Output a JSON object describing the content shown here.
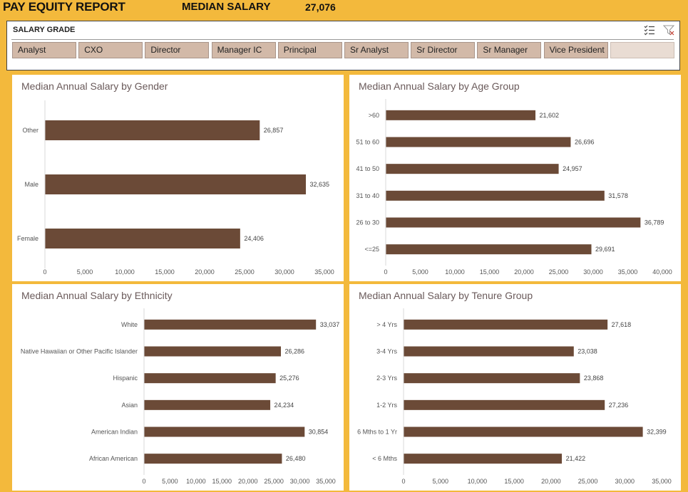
{
  "header": {
    "title": "PAY EQUITY REPORT",
    "metric_label": "MEDIAN SALARY",
    "metric_value": "27,076"
  },
  "slicer": {
    "title": "SALARY GRADE",
    "icons": [
      "multi-select-icon",
      "clear-filter-icon"
    ],
    "items": [
      "Analyst",
      "CXO",
      "Director",
      "Manager IC",
      "Principal",
      "Sr Analyst",
      "Sr Director",
      "Sr Manager",
      "Vice President",
      ""
    ]
  },
  "colors": {
    "bar": "#6b4a37",
    "header": "#f3b93c",
    "slicer_button": "#d2b9a8"
  },
  "chart_data": [
    {
      "type": "bar",
      "orientation": "horizontal",
      "title": "Median Annual Salary by Gender",
      "categories": [
        "Other",
        "Male",
        "Female"
      ],
      "values": [
        26857,
        32635,
        24406
      ],
      "labels": [
        "26,857",
        "32,635",
        "24,406"
      ],
      "xlim": [
        0,
        35000
      ],
      "ticks": [
        "0",
        "5,000",
        "10,000",
        "15,000",
        "20,000",
        "25,000",
        "30,000",
        "35,000"
      ]
    },
    {
      "type": "bar",
      "orientation": "horizontal",
      "title": "Median Annual Salary by Age Group",
      "categories": [
        ">60",
        "51 to 60",
        "41 to 50",
        "31 to 40",
        "26 to 30",
        "<=25"
      ],
      "values": [
        21602,
        26696,
        24957,
        31578,
        36789,
        29691
      ],
      "labels": [
        "21,602",
        "26,696",
        "24,957",
        "31,578",
        "36,789",
        "29,691"
      ],
      "xlim": [
        0,
        40000
      ],
      "ticks": [
        "0",
        "5,000",
        "10,000",
        "15,000",
        "20,000",
        "25,000",
        "30,000",
        "35,000",
        "40,000"
      ]
    },
    {
      "type": "bar",
      "orientation": "horizontal",
      "title": "Median Annual Salary by Ethnicity",
      "categories": [
        "White",
        "Native Hawaiian or Other Pacific Islander",
        "Hispanic",
        "Asian",
        "American Indian",
        "African American"
      ],
      "values": [
        33037,
        26286,
        25276,
        24234,
        30854,
        26480
      ],
      "labels": [
        "33,037",
        "26,286",
        "25,276",
        "24,234",
        "30,854",
        "26,480"
      ],
      "xlim": [
        0,
        35000
      ],
      "ticks": [
        "0",
        "5,000",
        "10,000",
        "15,000",
        "20,000",
        "25,000",
        "30,000",
        "35,000"
      ]
    },
    {
      "type": "bar",
      "orientation": "horizontal",
      "title": "Median Annual Salary by Tenure Group",
      "categories": [
        "> 4 Yrs",
        "3-4 Yrs",
        "2-3 Yrs",
        "1-2 Yrs",
        "6 Mths to 1 Yr",
        "< 6 Mths"
      ],
      "values": [
        27618,
        23038,
        23868,
        27236,
        32399,
        21422
      ],
      "labels": [
        "27,618",
        "23,038",
        "23,868",
        "27,236",
        "32,399",
        "21,422"
      ],
      "xlim": [
        0,
        35000
      ],
      "ticks": [
        "0",
        "5,000",
        "10,000",
        "15,000",
        "20,000",
        "25,000",
        "30,000",
        "35,000"
      ]
    }
  ]
}
